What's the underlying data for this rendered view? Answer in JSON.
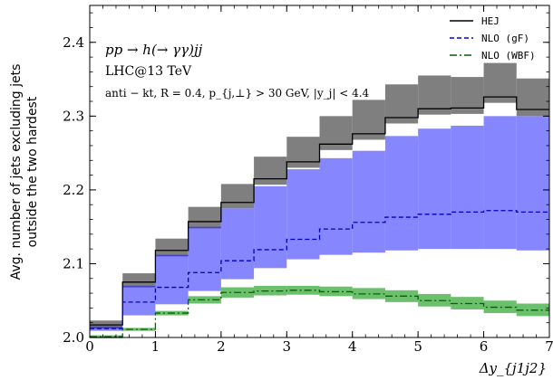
{
  "chart_data": {
    "type": "step",
    "xlabel": "Δy_{j1j2}",
    "ylabel_lines": [
      "Avg. number of jets excluding jets",
      "outside the two hardest"
    ],
    "xlim": [
      0,
      7
    ],
    "ylim": [
      2.0,
      2.45
    ],
    "x_ticks": [
      0,
      1,
      2,
      3,
      4,
      5,
      6,
      7
    ],
    "y_ticks": [
      2.0,
      2.1,
      2.2,
      2.3,
      2.4
    ],
    "x_tick_labels": [
      "0",
      "1",
      "2",
      "3",
      "4",
      "5",
      "6",
      "7"
    ],
    "y_tick_labels": [
      "2.0",
      "2.1",
      "2.2",
      "2.3",
      "2.4"
    ],
    "annotations": [
      "pp → h(→ γγ)jj",
      "LHC@13 TeV",
      "anti − kt, R = 0.4, p_{j,⊥} > 30 GeV, |y_j| < 4.4"
    ],
    "legend_position": "top-right",
    "bin_edges": [
      0,
      0.5,
      1,
      1.5,
      2,
      2.5,
      3,
      3.5,
      4,
      4.5,
      5,
      5.5,
      6,
      6.5,
      7
    ],
    "series": [
      {
        "name": "HEJ",
        "color": "#000000",
        "style": "solid",
        "band_color": "#7f7f7f",
        "values": [
          2.017,
          2.075,
          2.118,
          2.157,
          2.183,
          2.215,
          2.238,
          2.262,
          2.276,
          2.298,
          2.31,
          2.311,
          2.326,
          2.309
        ],
        "band_low": [
          2.012,
          2.068,
          2.11,
          2.148,
          2.175,
          2.207,
          2.23,
          2.254,
          2.268,
          2.29,
          2.302,
          2.303,
          2.318,
          2.3
        ],
        "band_high": [
          2.023,
          2.087,
          2.134,
          2.177,
          2.208,
          2.245,
          2.272,
          2.3,
          2.322,
          2.343,
          2.355,
          2.353,
          2.372,
          2.351
        ]
      },
      {
        "name": "NLO (gF)",
        "color": "#0000cc",
        "style": "dashed",
        "band_color": "#7f7fff",
        "values": [
          2.012,
          2.048,
          2.068,
          2.088,
          2.104,
          2.119,
          2.133,
          2.147,
          2.156,
          2.163,
          2.167,
          2.17,
          2.172,
          2.17
        ],
        "band_low": [
          2.009,
          2.03,
          2.045,
          2.063,
          2.079,
          2.094,
          2.106,
          2.112,
          2.115,
          2.118,
          2.12,
          2.12,
          2.12,
          2.118
        ],
        "band_high": [
          2.015,
          2.07,
          2.112,
          2.15,
          2.175,
          2.205,
          2.228,
          2.243,
          2.253,
          2.273,
          2.283,
          2.287,
          2.3,
          2.3
        ]
      },
      {
        "name": "NLO (WBF)",
        "color": "#006400",
        "style": "dashdot",
        "band_color": "#5cb85c",
        "values": [
          2.001,
          2.011,
          2.033,
          2.051,
          2.061,
          2.063,
          2.064,
          2.062,
          2.059,
          2.056,
          2.05,
          2.046,
          2.041,
          2.037
        ],
        "band_low": [
          1.999,
          2.009,
          2.03,
          2.046,
          2.054,
          2.057,
          2.058,
          2.056,
          2.052,
          2.048,
          2.042,
          2.038,
          2.033,
          2.029
        ],
        "band_high": [
          2.003,
          2.013,
          2.036,
          2.056,
          2.068,
          2.07,
          2.07,
          2.069,
          2.067,
          2.064,
          2.059,
          2.055,
          2.05,
          2.046
        ]
      }
    ]
  }
}
